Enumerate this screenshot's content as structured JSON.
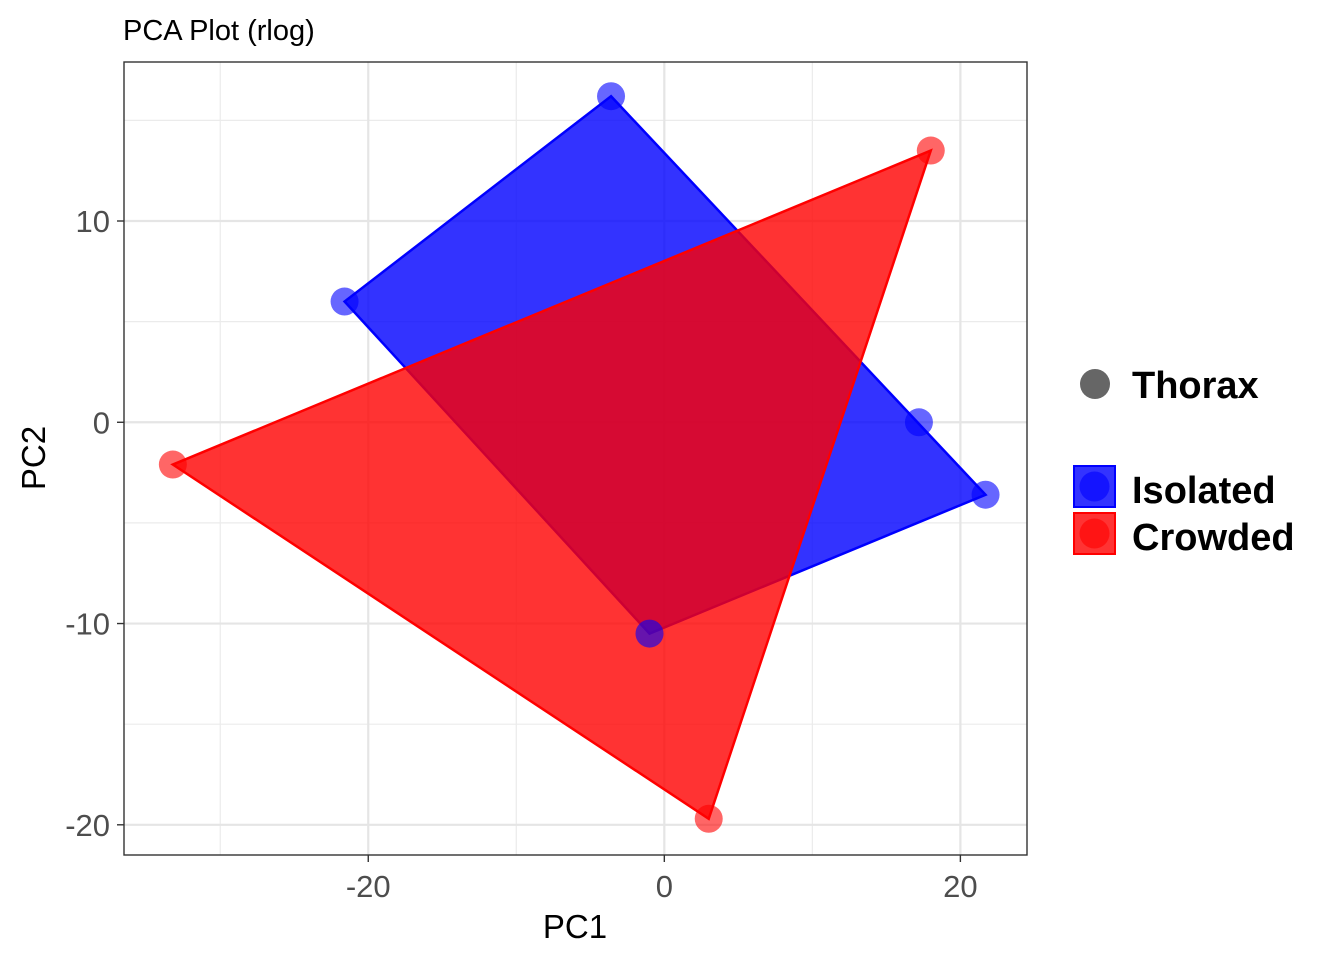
{
  "chart_data": {
    "type": "scatter",
    "title": "PCA Plot (rlog)",
    "xlabel": "PC1",
    "ylabel": "PC2",
    "xlim": [
      -36.5,
      24.5
    ],
    "ylim": [
      -21.5,
      17.9
    ],
    "x_ticks": [
      -20,
      0,
      20
    ],
    "x_tick_labels": [
      "-20",
      "0",
      "20"
    ],
    "y_ticks": [
      -20,
      -10,
      0,
      10
    ],
    "y_tick_labels": [
      "-20",
      "-10",
      "0",
      "10"
    ],
    "grid": true,
    "legend_position": "right",
    "shape_legend": [
      {
        "name": "Thorax",
        "color": "#666666"
      }
    ],
    "series": [
      {
        "name": "Isolated",
        "color": "#0000FF",
        "points": [
          {
            "x": -3.6,
            "y": 16.2
          },
          {
            "x": -21.6,
            "y": 6.0
          },
          {
            "x": 17.2,
            "y": 0.0
          },
          {
            "x": 21.7,
            "y": -3.6
          },
          {
            "x": -1.0,
            "y": -10.5
          }
        ],
        "hull": [
          [
            -3.6,
            16.2
          ],
          [
            -21.6,
            6.0
          ],
          [
            -1.0,
            -10.5
          ],
          [
            21.7,
            -3.6
          ]
        ]
      },
      {
        "name": "Crowded",
        "color": "#FF0000",
        "points": [
          {
            "x": 18.0,
            "y": 13.5
          },
          {
            "x": -33.2,
            "y": -2.1
          },
          {
            "x": 3.0,
            "y": -19.7
          }
        ],
        "hull": [
          [
            18.0,
            13.5
          ],
          [
            -33.2,
            -2.1
          ],
          [
            3.0,
            -19.7
          ]
        ]
      }
    ]
  }
}
